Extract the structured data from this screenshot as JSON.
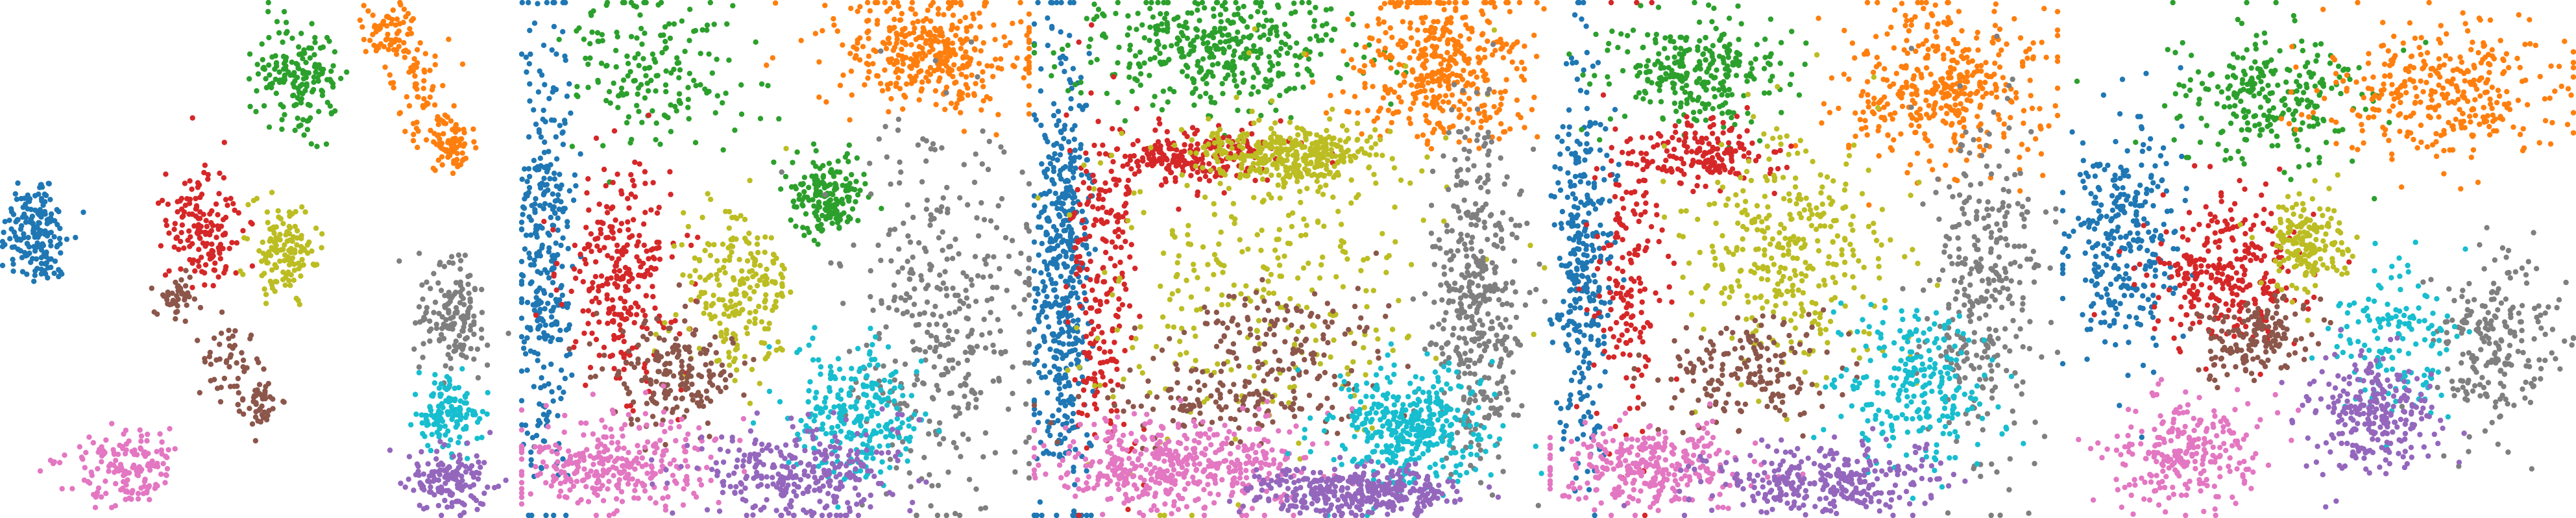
{
  "palette": {
    "blue": "#1f77b4",
    "orange": "#ff7f0e",
    "green": "#2ca02c",
    "red": "#d62728",
    "purple": "#9467bd",
    "brown": "#8c564b",
    "pink": "#e377c2",
    "gray": "#7f7f7f",
    "olive": "#bcbd22",
    "cyan": "#17becf"
  },
  "chart_data": [
    {
      "type": "scatter",
      "title": "",
      "xlabel": "",
      "ylabel": "",
      "xlim": [
        0,
        1
      ],
      "ylim": [
        0,
        1
      ],
      "grid": false,
      "legend": "none",
      "axes": "hidden",
      "clusters": [
        {
          "color": "blue",
          "points": 170,
          "regions": [
            [
              0.07,
              0.45,
              0.06,
              0.1
            ]
          ]
        },
        {
          "color": "green",
          "points": 170,
          "regions": [
            [
              0.58,
              0.15,
              0.07,
              0.1
            ]
          ]
        },
        {
          "color": "orange",
          "points": 200,
          "regions": [
            [
              0.75,
              0.06,
              0.05,
              0.05
            ],
            [
              0.82,
              0.18,
              0.05,
              0.09
            ],
            [
              0.88,
              0.28,
              0.04,
              0.05
            ]
          ]
        },
        {
          "color": "red",
          "points": 150,
          "regions": [
            [
              0.39,
              0.44,
              0.06,
              0.1
            ]
          ]
        },
        {
          "color": "olive",
          "points": 140,
          "regions": [
            [
              0.55,
              0.48,
              0.06,
              0.08
            ]
          ]
        },
        {
          "color": "brown",
          "points": 140,
          "regions": [
            [
              0.34,
              0.58,
              0.04,
              0.04
            ],
            [
              0.45,
              0.7,
              0.05,
              0.08
            ],
            [
              0.5,
              0.78,
              0.04,
              0.04
            ]
          ]
        },
        {
          "color": "pink",
          "points": 150,
          "regions": [
            [
              0.25,
              0.9,
              0.1,
              0.07
            ]
          ]
        },
        {
          "color": "gray",
          "points": 150,
          "regions": [
            [
              0.88,
              0.62,
              0.06,
              0.1
            ]
          ]
        },
        {
          "color": "cyan",
          "points": 130,
          "regions": [
            [
              0.87,
              0.8,
              0.06,
              0.06
            ]
          ]
        },
        {
          "color": "purple",
          "points": 150,
          "regions": [
            [
              0.87,
              0.93,
              0.07,
              0.06
            ]
          ]
        }
      ]
    },
    {
      "type": "scatter",
      "title": "",
      "xlabel": "",
      "ylabel": "",
      "xlim": [
        0,
        1
      ],
      "ylim": [
        0,
        1
      ],
      "grid": false,
      "legend": "none",
      "axes": "hidden",
      "clusters": [
        {
          "color": "blue",
          "points": 330,
          "regions": [
            [
              0.05,
              0.5,
              0.05,
              0.42
            ]
          ]
        },
        {
          "color": "green",
          "points": 350,
          "regions": [
            [
              0.27,
              0.14,
              0.15,
              0.14
            ],
            [
              0.6,
              0.38,
              0.07,
              0.07
            ]
          ]
        },
        {
          "color": "orange",
          "points": 380,
          "regions": [
            [
              0.8,
              0.1,
              0.18,
              0.1
            ]
          ]
        },
        {
          "color": "red",
          "points": 270,
          "regions": [
            [
              0.2,
              0.53,
              0.11,
              0.18
            ]
          ]
        },
        {
          "color": "olive",
          "points": 220,
          "regions": [
            [
              0.43,
              0.55,
              0.1,
              0.14
            ]
          ]
        },
        {
          "color": "brown",
          "points": 180,
          "regions": [
            [
              0.3,
              0.72,
              0.11,
              0.09
            ]
          ]
        },
        {
          "color": "pink",
          "points": 300,
          "regions": [
            [
              0.18,
              0.9,
              0.18,
              0.08
            ]
          ]
        },
        {
          "color": "gray",
          "points": 380,
          "regions": [
            [
              0.83,
              0.6,
              0.16,
              0.33
            ]
          ]
        },
        {
          "color": "cyan",
          "points": 250,
          "regions": [
            [
              0.66,
              0.8,
              0.12,
              0.12
            ]
          ]
        },
        {
          "color": "purple",
          "points": 300,
          "regions": [
            [
              0.55,
              0.92,
              0.18,
              0.08
            ]
          ]
        }
      ]
    },
    {
      "type": "scatter",
      "title": "",
      "xlabel": "",
      "ylabel": "",
      "xlim": [
        0,
        1
      ],
      "ylim": [
        0,
        1
      ],
      "grid": false,
      "legend": "none",
      "axes": "hidden",
      "clusters": [
        {
          "color": "blue",
          "points": 500,
          "regions": [
            [
              0.06,
              0.52,
              0.05,
              0.43
            ]
          ]
        },
        {
          "color": "green",
          "points": 400,
          "regions": [
            [
              0.35,
              0.1,
              0.23,
              0.1
            ]
          ]
        },
        {
          "color": "orange",
          "points": 420,
          "regions": [
            [
              0.79,
              0.12,
              0.16,
              0.15
            ]
          ]
        },
        {
          "color": "red",
          "points": 440,
          "regions": [
            [
              0.14,
              0.55,
              0.06,
              0.33
            ],
            [
              0.32,
              0.3,
              0.15,
              0.05
            ]
          ]
        },
        {
          "color": "olive",
          "points": 650,
          "regions": [
            [
              0.45,
              0.53,
              0.3,
              0.3
            ],
            [
              0.5,
              0.3,
              0.15,
              0.05
            ]
          ]
        },
        {
          "color": "brown",
          "points": 270,
          "regions": [
            [
              0.38,
              0.78,
              0.22,
              0.07
            ],
            [
              0.48,
              0.66,
              0.18,
              0.1
            ]
          ]
        },
        {
          "color": "pink",
          "points": 450,
          "regions": [
            [
              0.3,
              0.9,
              0.24,
              0.08
            ]
          ]
        },
        {
          "color": "gray",
          "points": 420,
          "regions": [
            [
              0.86,
              0.57,
              0.08,
              0.3
            ]
          ]
        },
        {
          "color": "cyan",
          "points": 380,
          "regions": [
            [
              0.74,
              0.82,
              0.14,
              0.1
            ]
          ]
        },
        {
          "color": "purple",
          "points": 380,
          "regions": [
            [
              0.63,
              0.95,
              0.18,
              0.04
            ]
          ]
        }
      ]
    },
    {
      "type": "scatter",
      "title": "",
      "xlabel": "",
      "ylabel": "",
      "xlim": [
        0,
        1
      ],
      "ylim": [
        0,
        1
      ],
      "grid": false,
      "legend": "none",
      "axes": "hidden",
      "clusters": [
        {
          "color": "blue",
          "points": 330,
          "regions": [
            [
              0.07,
              0.5,
              0.05,
              0.35
            ]
          ]
        },
        {
          "color": "green",
          "points": 280,
          "regions": [
            [
              0.3,
              0.14,
              0.15,
              0.1
            ]
          ]
        },
        {
          "color": "orange",
          "points": 400,
          "regions": [
            [
              0.78,
              0.17,
              0.18,
              0.14
            ]
          ]
        },
        {
          "color": "red",
          "points": 330,
          "regions": [
            [
              0.16,
              0.55,
              0.06,
              0.3
            ],
            [
              0.3,
              0.3,
              0.12,
              0.06
            ]
          ]
        },
        {
          "color": "olive",
          "points": 350,
          "regions": [
            [
              0.48,
              0.48,
              0.18,
              0.2
            ]
          ]
        },
        {
          "color": "brown",
          "points": 180,
          "regions": [
            [
              0.38,
              0.72,
              0.16,
              0.1
            ]
          ]
        },
        {
          "color": "pink",
          "points": 300,
          "regions": [
            [
              0.2,
              0.9,
              0.18,
              0.07
            ]
          ]
        },
        {
          "color": "gray",
          "points": 320,
          "regions": [
            [
              0.85,
              0.55,
              0.1,
              0.3
            ]
          ]
        },
        {
          "color": "cyan",
          "points": 250,
          "regions": [
            [
              0.72,
              0.75,
              0.14,
              0.14
            ]
          ]
        },
        {
          "color": "purple",
          "points": 300,
          "regions": [
            [
              0.55,
              0.93,
              0.2,
              0.06
            ]
          ]
        }
      ]
    },
    {
      "type": "scatter",
      "title": "",
      "xlabel": "",
      "ylabel": "",
      "xlim": [
        0,
        1
      ],
      "ylim": [
        0,
        1
      ],
      "grid": false,
      "legend": "none",
      "axes": "hidden",
      "clusters": [
        {
          "color": "blue",
          "points": 300,
          "regions": [
            [
              0.12,
              0.45,
              0.1,
              0.22
            ]
          ]
        },
        {
          "color": "green",
          "points": 260,
          "regions": [
            [
              0.4,
              0.18,
              0.18,
              0.12
            ]
          ]
        },
        {
          "color": "orange",
          "points": 350,
          "regions": [
            [
              0.75,
              0.17,
              0.22,
              0.12
            ]
          ]
        },
        {
          "color": "red",
          "points": 300,
          "regions": [
            [
              0.32,
              0.53,
              0.13,
              0.14
            ]
          ]
        },
        {
          "color": "olive",
          "points": 180,
          "regions": [
            [
              0.48,
              0.47,
              0.08,
              0.08
            ]
          ]
        },
        {
          "color": "brown",
          "points": 160,
          "regions": [
            [
              0.38,
              0.65,
              0.1,
              0.07
            ]
          ]
        },
        {
          "color": "pink",
          "points": 250,
          "regions": [
            [
              0.25,
              0.87,
              0.14,
              0.1
            ]
          ]
        },
        {
          "color": "gray",
          "points": 220,
          "regions": [
            [
              0.85,
              0.67,
              0.12,
              0.15
            ]
          ]
        },
        {
          "color": "cyan",
          "points": 150,
          "regions": [
            [
              0.65,
              0.66,
              0.1,
              0.12
            ]
          ]
        },
        {
          "color": "purple",
          "points": 260,
          "regions": [
            [
              0.6,
              0.8,
              0.12,
              0.1
            ]
          ]
        }
      ]
    }
  ]
}
